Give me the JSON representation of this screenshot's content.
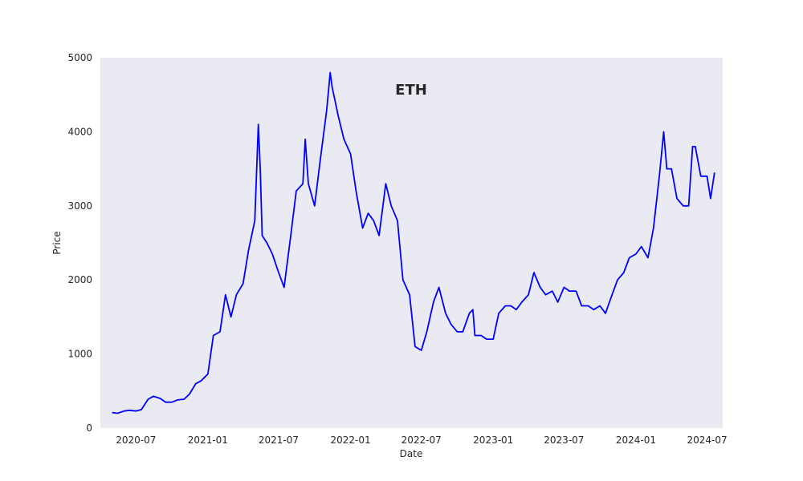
{
  "chart_data": {
    "type": "line",
    "title": "ETH",
    "xlabel": "Date",
    "ylabel": "Price",
    "x_range": [
      "2020-04-01",
      "2024-08-10"
    ],
    "ylim": [
      0,
      5000
    ],
    "x_ticks": [
      "2020-07-01",
      "2021-01-01",
      "2021-07-01",
      "2022-01-01",
      "2022-07-01",
      "2023-01-01",
      "2023-07-01",
      "2024-01-01",
      "2024-07-01"
    ],
    "x_tick_labels": [
      "2020-07",
      "2021-01",
      "2021-07",
      "2022-01",
      "2022-07",
      "2023-01",
      "2023-07",
      "2024-01",
      "2024-07"
    ],
    "y_ticks": [
      0,
      1000,
      2000,
      3000,
      4000,
      5000
    ],
    "y_tick_labels": [
      "0",
      "1000",
      "2000",
      "3000",
      "4000",
      "5000"
    ],
    "grid": false,
    "background_color": "#eaeaf2",
    "line_color": "#0000ff",
    "series": [
      {
        "x": [
          "2020-05-01",
          "2020-05-15",
          "2020-06-01",
          "2020-06-15",
          "2020-07-01",
          "2020-07-15",
          "2020-08-01",
          "2020-08-15",
          "2020-09-01",
          "2020-09-15",
          "2020-10-01",
          "2020-10-15",
          "2020-11-01",
          "2020-11-15",
          "2020-12-01",
          "2020-12-15",
          "2021-01-01",
          "2021-01-15",
          "2021-02-01",
          "2021-02-15",
          "2021-03-01",
          "2021-03-15",
          "2021-04-01",
          "2021-04-15",
          "2021-05-01",
          "2021-05-10",
          "2021-05-15",
          "2021-05-20",
          "2021-06-01",
          "2021-06-15",
          "2021-07-01",
          "2021-07-15",
          "2021-08-01",
          "2021-08-15",
          "2021-09-01",
          "2021-09-07",
          "2021-09-15",
          "2021-10-01",
          "2021-10-15",
          "2021-11-01",
          "2021-11-10",
          "2021-11-15",
          "2021-12-01",
          "2021-12-15",
          "2022-01-01",
          "2022-01-15",
          "2022-02-01",
          "2022-02-15",
          "2022-03-01",
          "2022-03-15",
          "2022-04-01",
          "2022-04-15",
          "2022-05-01",
          "2022-05-15",
          "2022-06-01",
          "2022-06-15",
          "2022-07-01",
          "2022-07-15",
          "2022-08-01",
          "2022-08-15",
          "2022-09-01",
          "2022-09-15",
          "2022-10-01",
          "2022-10-15",
          "2022-11-01",
          "2022-11-10",
          "2022-11-15",
          "2022-12-01",
          "2022-12-15",
          "2023-01-01",
          "2023-01-15",
          "2023-02-01",
          "2023-02-15",
          "2023-03-01",
          "2023-03-15",
          "2023-04-01",
          "2023-04-15",
          "2023-05-01",
          "2023-05-15",
          "2023-06-01",
          "2023-06-15",
          "2023-07-01",
          "2023-07-15",
          "2023-08-01",
          "2023-08-15",
          "2023-09-01",
          "2023-09-15",
          "2023-10-01",
          "2023-10-15",
          "2023-11-01",
          "2023-11-15",
          "2023-12-01",
          "2023-12-15",
          "2024-01-01",
          "2024-01-15",
          "2024-02-01",
          "2024-02-15",
          "2024-03-01",
          "2024-03-12",
          "2024-03-20",
          "2024-04-01",
          "2024-04-15",
          "2024-05-01",
          "2024-05-15",
          "2024-05-25",
          "2024-06-01",
          "2024-06-15",
          "2024-07-01",
          "2024-07-10",
          "2024-07-20"
        ],
        "values": [
          210,
          200,
          230,
          240,
          230,
          250,
          390,
          430,
          400,
          350,
          350,
          380,
          390,
          460,
          600,
          640,
          730,
          1250,
          1300,
          1800,
          1500,
          1800,
          1950,
          2400,
          2800,
          4100,
          3500,
          2600,
          2500,
          2350,
          2100,
          1900,
          2600,
          3200,
          3300,
          3900,
          3300,
          3000,
          3600,
          4300,
          4800,
          4600,
          4200,
          3900,
          3700,
          3200,
          2700,
          2900,
          2800,
          2600,
          3300,
          3000,
          2800,
          2000,
          1800,
          1100,
          1050,
          1300,
          1700,
          1900,
          1550,
          1400,
          1300,
          1300,
          1550,
          1600,
          1250,
          1250,
          1200,
          1200,
          1550,
          1650,
          1650,
          1600,
          1700,
          1800,
          2100,
          1900,
          1800,
          1850,
          1700,
          1900,
          1850,
          1850,
          1650,
          1650,
          1600,
          1650,
          1550,
          1800,
          2000,
          2100,
          2300,
          2350,
          2450,
          2300,
          2700,
          3400,
          4000,
          3500,
          3500,
          3100,
          3000,
          3000,
          3800,
          3800,
          3400,
          3400,
          3100,
          3450
        ]
      }
    ]
  }
}
